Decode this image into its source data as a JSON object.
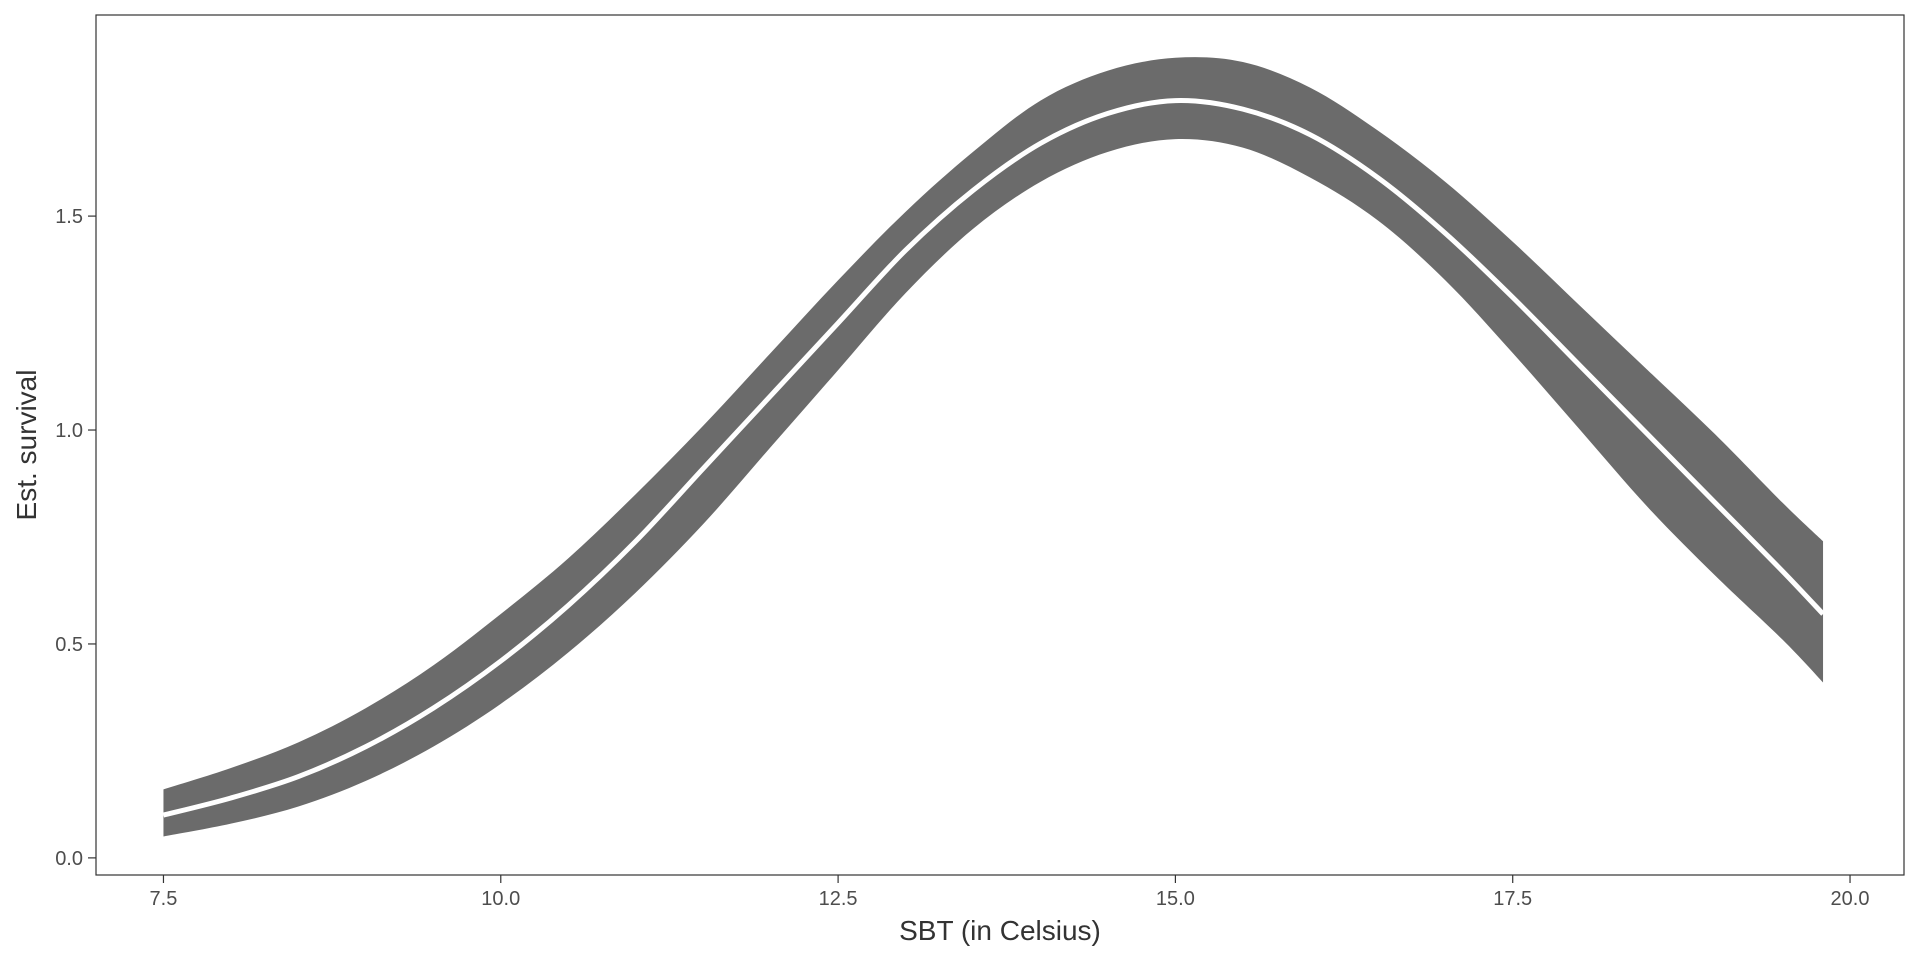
{
  "chart_data": {
    "type": "area",
    "title": "",
    "xlabel": "SBT (in Celsius)",
    "ylabel": "Est. survival",
    "xlim": [
      7.0,
      20.4
    ],
    "ylim": [
      -0.04,
      1.97
    ],
    "x_ticks": [
      7.5,
      10.0,
      12.5,
      15.0,
      17.5,
      20.0
    ],
    "x_tick_labels": [
      "7.5",
      "10.0",
      "12.5",
      "15.0",
      "17.5",
      "20.0"
    ],
    "y_ticks": [
      0.0,
      0.5,
      1.0,
      1.5
    ],
    "y_tick_labels": [
      "0.0",
      "0.5",
      "1.0",
      "1.5"
    ],
    "grid": false,
    "legend": "none",
    "colors": {
      "ribbon": "#6b6b6b",
      "line": "#ffffff",
      "panel_border": "#333333"
    },
    "x": [
      7.5,
      8.0,
      8.5,
      9.0,
      9.5,
      10.0,
      10.5,
      11.0,
      11.5,
      12.0,
      12.5,
      13.0,
      13.5,
      14.0,
      14.5,
      15.0,
      15.5,
      16.0,
      16.5,
      17.0,
      17.5,
      18.0,
      18.5,
      19.0,
      19.5,
      19.8
    ],
    "series": [
      {
        "values": [
          0.1,
          0.14,
          0.19,
          0.26,
          0.35,
          0.46,
          0.59,
          0.74,
          0.91,
          1.08,
          1.25,
          1.42,
          1.56,
          1.67,
          1.74,
          1.77,
          1.75,
          1.69,
          1.59,
          1.46,
          1.31,
          1.15,
          0.99,
          0.83,
          0.67,
          0.57
        ],
        "lower": [
          0.05,
          0.08,
          0.12,
          0.18,
          0.26,
          0.36,
          0.48,
          0.62,
          0.78,
          0.96,
          1.14,
          1.32,
          1.47,
          1.58,
          1.65,
          1.68,
          1.66,
          1.59,
          1.49,
          1.35,
          1.18,
          1.0,
          0.82,
          0.66,
          0.51,
          0.41
        ],
        "upper": [
          0.16,
          0.21,
          0.27,
          0.35,
          0.45,
          0.57,
          0.7,
          0.85,
          1.01,
          1.18,
          1.35,
          1.51,
          1.65,
          1.77,
          1.84,
          1.87,
          1.86,
          1.8,
          1.7,
          1.58,
          1.44,
          1.29,
          1.14,
          0.99,
          0.83,
          0.74
        ]
      }
    ]
  }
}
